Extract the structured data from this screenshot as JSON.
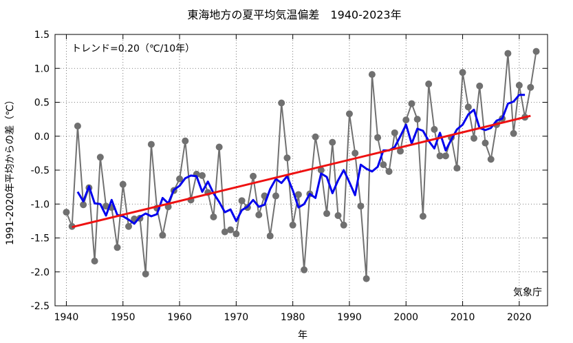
{
  "chart_data": {
    "type": "line",
    "title": "東海地方の夏平均気温偏差　1940-2023年",
    "xlabel": "年",
    "ylabel": "1991-2020年平均からの差（℃）",
    "trend_label": "トレンド=0.20（℃/10年）",
    "source": "気象庁",
    "xlim": [
      1938,
      2025
    ],
    "ylim": [
      -2.5,
      1.5
    ],
    "xticks": [
      1940,
      1950,
      1960,
      1970,
      1980,
      1990,
      2000,
      2010,
      2020
    ],
    "yticks": [
      1.5,
      1.0,
      0.5,
      0.0,
      -0.5,
      -1.0,
      -1.5,
      -2.0,
      -2.5
    ],
    "ytick_labels": [
      "1.5",
      "1.0",
      "0.5",
      "0.0",
      "-0.5",
      "-1.0",
      "-1.5",
      "-2.0",
      "-2.5"
    ],
    "grid": true,
    "colors": {
      "annual": "#707070",
      "moving_average": "#0000ee",
      "trend": "#ee1111"
    },
    "series": [
      {
        "x": [
          1940,
          1941,
          1942,
          1943,
          1944,
          1945,
          1946,
          1947,
          1948,
          1949,
          1950,
          1951,
          1952,
          1953,
          1954,
          1955,
          1956,
          1957,
          1958,
          1959,
          1960,
          1961,
          1962,
          1963,
          1964,
          1965,
          1966,
          1967,
          1968,
          1969,
          1970,
          1971,
          1972,
          1973,
          1974,
          1975,
          1976,
          1977,
          1978,
          1979,
          1980,
          1981,
          1982,
          1983,
          1984,
          1985,
          1986,
          1987,
          1988,
          1989,
          1990,
          1991,
          1992,
          1993,
          1994,
          1995,
          1996,
          1997,
          1998,
          1999,
          2000,
          2001,
          2002,
          2003,
          2004,
          2005,
          2006,
          2007,
          2008,
          2009,
          2010,
          2011,
          2012,
          2013,
          2014,
          2015,
          2016,
          2017,
          2018,
          2019,
          2020,
          2021,
          2022,
          2023
        ],
        "y": [
          -1.12,
          -1.33,
          0.15,
          -1.01,
          -0.76,
          -1.84,
          -0.31,
          -1.03,
          -1.05,
          -1.64,
          -0.71,
          -1.33,
          -1.22,
          -1.21,
          -2.03,
          -0.12,
          -1.06,
          -1.46,
          -1.04,
          -0.8,
          -0.63,
          -0.07,
          -0.94,
          -0.56,
          -0.58,
          -0.83,
          -1.19,
          -0.16,
          -1.41,
          -1.38,
          -1.44,
          -0.95,
          -1.05,
          -0.59,
          -1.16,
          -0.88,
          -1.47,
          -0.88,
          0.49,
          -0.32,
          -1.31,
          -0.86,
          -1.97,
          -0.85,
          -0.01,
          -0.5,
          -1.14,
          -0.09,
          -1.17,
          -1.31,
          0.33,
          -0.25,
          -1.03,
          -2.1,
          0.91,
          -0.02,
          -0.42,
          -0.52,
          0.05,
          -0.22,
          0.24,
          0.48,
          0.25,
          -1.18,
          0.77,
          0.1,
          -0.29,
          -0.29,
          -0.02,
          -0.47,
          0.94,
          0.43,
          -0.03,
          0.74,
          -0.1,
          -0.34,
          0.17,
          0.26,
          1.22,
          0.04,
          0.75,
          0.28,
          0.72,
          1.25
        ]
      },
      {
        "x": [
          1942,
          1943,
          1944,
          1945,
          1946,
          1947,
          1948,
          1949,
          1950,
          1951,
          1952,
          1953,
          1954,
          1955,
          1956,
          1957,
          1958,
          1959,
          1960,
          1961,
          1962,
          1963,
          1964,
          1965,
          1966,
          1967,
          1968,
          1969,
          1970,
          1971,
          1972,
          1973,
          1974,
          1975,
          1976,
          1977,
          1978,
          1979,
          1980,
          1981,
          1982,
          1983,
          1984,
          1985,
          1986,
          1987,
          1988,
          1989,
          1990,
          1991,
          1992,
          1993,
          1994,
          1995,
          1996,
          1997,
          1998,
          1999,
          2000,
          2001,
          2002,
          2003,
          2004,
          2005,
          2006,
          2007,
          2008,
          2009,
          2010,
          2011,
          2012,
          2013,
          2014,
          2015,
          2016,
          2017,
          2018,
          2019,
          2020,
          2021
        ],
        "y": [
          -0.82,
          -0.96,
          -0.74,
          -0.99,
          -1.0,
          -1.17,
          -0.94,
          -1.16,
          -1.18,
          -1.23,
          -1.29,
          -1.19,
          -1.14,
          -1.18,
          -1.15,
          -0.91,
          -0.99,
          -0.79,
          -0.73,
          -0.62,
          -0.58,
          -0.59,
          -0.82,
          -0.67,
          -0.84,
          -0.97,
          -1.12,
          -1.08,
          -1.25,
          -1.09,
          -1.04,
          -0.94,
          -1.04,
          -1.01,
          -0.78,
          -0.63,
          -0.69,
          -0.59,
          -0.8,
          -1.05,
          -1.0,
          -0.85,
          -0.91,
          -0.55,
          -0.6,
          -0.84,
          -0.65,
          -0.5,
          -0.68,
          -0.87,
          -0.42,
          -0.48,
          -0.52,
          -0.45,
          -0.21,
          -0.21,
          -0.16,
          0.0,
          0.17,
          -0.11,
          0.11,
          0.08,
          -0.07,
          -0.18,
          0.05,
          -0.21,
          -0.05,
          0.1,
          0.17,
          0.32,
          0.39,
          0.12,
          0.09,
          0.12,
          0.23,
          0.26,
          0.48,
          0.51,
          0.61,
          0.61
        ]
      },
      {
        "x": [
          1941,
          2022
        ],
        "y": [
          -1.34,
          0.3
        ]
      }
    ]
  }
}
